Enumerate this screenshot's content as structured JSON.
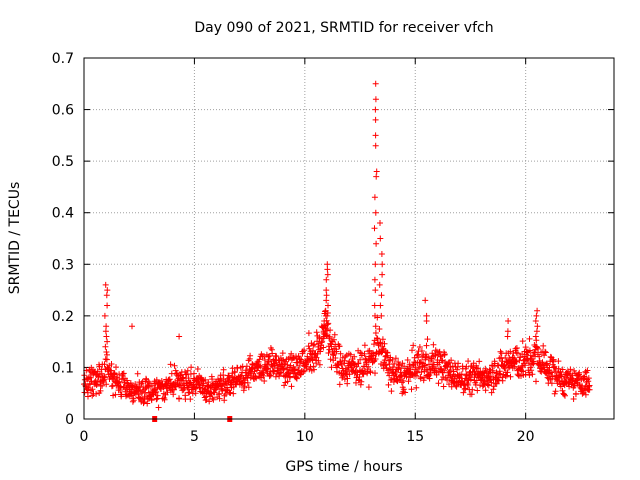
{
  "chart_data": {
    "type": "scatter",
    "title": "Day 090 of 2021, SRMTID for receiver vfch",
    "xlabel": "GPS time / hours",
    "ylabel": "SRMTID / TECUs",
    "xlim": [
      0,
      24
    ],
    "ylim": [
      0,
      0.7
    ],
    "xticks": [
      0,
      5,
      10,
      15,
      20
    ],
    "xtick_labels": [
      "0",
      "5",
      "10",
      "15",
      "20"
    ],
    "yticks": [
      0,
      0.1,
      0.2,
      0.3,
      0.4,
      0.5,
      0.6,
      0.7
    ],
    "ytick_labels": [
      "0",
      "0.1",
      "0.2",
      "0.3",
      "0.4",
      "0.5",
      "0.6",
      "0.7"
    ],
    "grid": true,
    "marker": "+",
    "series_color": "#ff0000",
    "gap_marker_color": "#ff0000",
    "data_gaps_x": [
      3.2,
      6.6
    ],
    "data_x_range": [
      0,
      22.9
    ],
    "profile": {
      "x": [
        0.0,
        0.5,
        0.9,
        1.1,
        1.4,
        2.0,
        2.5,
        3.0,
        3.5,
        4.0,
        4.5,
        5.0,
        5.5,
        6.0,
        6.6,
        7.0,
        7.5,
        8.0,
        8.5,
        9.0,
        9.5,
        10.0,
        10.5,
        10.8,
        11.0,
        11.2,
        11.5,
        12.0,
        12.5,
        13.0,
        13.2,
        13.3,
        13.45,
        13.6,
        14.0,
        14.5,
        15.0,
        15.5,
        16.0,
        16.5,
        17.0,
        17.5,
        18.0,
        18.5,
        19.0,
        19.3,
        19.7,
        20.0,
        20.5,
        21.0,
        21.5,
        22.0,
        22.5,
        22.9
      ],
      "y": [
        0.07,
        0.08,
        0.09,
        0.1,
        0.07,
        0.06,
        0.05,
        0.05,
        0.06,
        0.07,
        0.07,
        0.07,
        0.06,
        0.06,
        0.07,
        0.08,
        0.09,
        0.1,
        0.11,
        0.1,
        0.1,
        0.11,
        0.13,
        0.16,
        0.18,
        0.14,
        0.11,
        0.1,
        0.1,
        0.11,
        0.13,
        0.16,
        0.14,
        0.11,
        0.09,
        0.08,
        0.1,
        0.11,
        0.11,
        0.09,
        0.08,
        0.08,
        0.08,
        0.09,
        0.1,
        0.11,
        0.11,
        0.11,
        0.12,
        0.1,
        0.08,
        0.07,
        0.07,
        0.07
      ],
      "spread": [
        0.025,
        0.03,
        0.03,
        0.03,
        0.03,
        0.025,
        0.025,
        0.025,
        0.025,
        0.03,
        0.03,
        0.025,
        0.025,
        0.025,
        0.025,
        0.025,
        0.03,
        0.03,
        0.03,
        0.03,
        0.03,
        0.035,
        0.04,
        0.04,
        0.05,
        0.04,
        0.035,
        0.035,
        0.035,
        0.035,
        0.04,
        0.05,
        0.04,
        0.035,
        0.035,
        0.03,
        0.035,
        0.04,
        0.035,
        0.03,
        0.03,
        0.03,
        0.03,
        0.03,
        0.035,
        0.04,
        0.035,
        0.035,
        0.04,
        0.035,
        0.03,
        0.025,
        0.025,
        0.025
      ]
    },
    "peaks": [
      {
        "x": 1.0,
        "values": [
          0.26,
          0.25,
          0.24,
          0.22,
          0.2,
          0.18,
          0.17,
          0.16,
          0.15,
          0.14
        ]
      },
      {
        "x": 2.2,
        "values": [
          0.18
        ]
      },
      {
        "x": 4.3,
        "values": [
          0.16
        ]
      },
      {
        "x": 10.9,
        "values": [
          0.2,
          0.19,
          0.18,
          0.17,
          0.16
        ]
      },
      {
        "x": 11.0,
        "values": [
          0.3,
          0.29,
          0.28,
          0.27,
          0.25,
          0.24,
          0.23,
          0.22,
          0.21,
          0.2
        ]
      },
      {
        "x": 13.2,
        "values": [
          0.65,
          0.62,
          0.6,
          0.58,
          0.55,
          0.53,
          0.48,
          0.47,
          0.43,
          0.4,
          0.37,
          0.34,
          0.3,
          0.27,
          0.25,
          0.22,
          0.2,
          0.18
        ]
      },
      {
        "x": 13.45,
        "values": [
          0.38,
          0.35,
          0.32,
          0.3,
          0.28,
          0.26,
          0.24,
          0.22,
          0.2
        ]
      },
      {
        "x": 15.5,
        "values": [
          0.23,
          0.2,
          0.19
        ]
      },
      {
        "x": 19.2,
        "values": [
          0.19,
          0.17,
          0.16
        ]
      },
      {
        "x": 20.5,
        "values": [
          0.21,
          0.2,
          0.19,
          0.18,
          0.17,
          0.16
        ]
      }
    ]
  }
}
